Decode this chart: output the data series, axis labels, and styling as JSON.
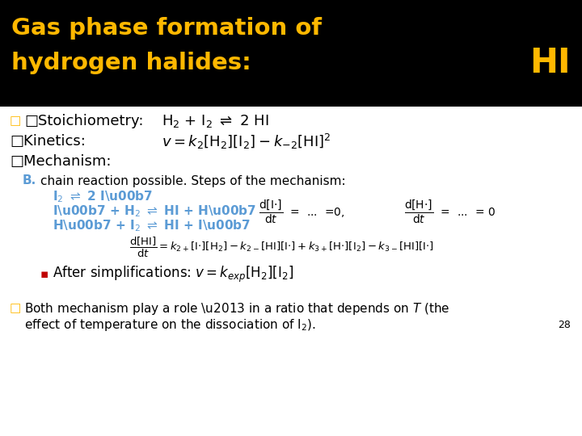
{
  "title_line1": "Gas phase formation of",
  "title_line2": "hydrogen halides:",
  "title_color": "#FFB800",
  "title_bg": "#000000",
  "hi_label": "HI",
  "hi_color": "#FFB800",
  "body_bg": "#FFFFFF",
  "bullet_color": "#FFB800",
  "bullet_char": "□",
  "text_color": "#000000",
  "teal_color": "#5B9BD5",
  "red_color": "#C00000",
  "page_num": "28",
  "figsize": [
    7.2,
    5.4
  ],
  "dpi": 100
}
